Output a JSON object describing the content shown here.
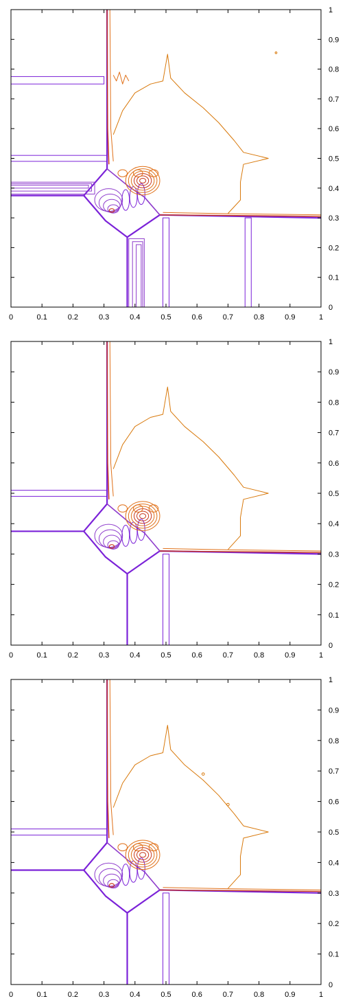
{
  "colors": {
    "contour_a": "#7b22d8",
    "contour_b": "#8e3ccc",
    "contour_c": "#c8381c",
    "contour_d": "#e07018",
    "contour_e": "#d8780a",
    "axis": "#000000"
  },
  "chart_data": [
    {
      "type": "contour",
      "panel": "top",
      "title": "",
      "xlabel": "",
      "ylabel": "",
      "xlim": [
        0,
        1
      ],
      "ylim": [
        0,
        1
      ],
      "xticks": [
        "0",
        "0.1",
        "0.2",
        "0.3",
        "0.4",
        "0.5",
        "0.6",
        "0.7",
        "0.8",
        "0.9",
        "1"
      ],
      "yticks": [
        "0",
        "0.1",
        "0.2",
        "0.3",
        "0.4",
        "0.5",
        "0.6",
        "0.7",
        "0.8",
        "0.9",
        "1"
      ],
      "yaxis_side": "right",
      "grid": false,
      "legend": "none",
      "notes": "multiple spurious straight contour lines along x and y directions"
    },
    {
      "type": "contour",
      "panel": "middle",
      "title": "",
      "xlabel": "",
      "ylabel": "",
      "xlim": [
        0,
        1
      ],
      "ylim": [
        0,
        1
      ],
      "xticks": [
        "0",
        "0.1",
        "0.2",
        "0.3",
        "0.4",
        "0.5",
        "0.6",
        "0.7",
        "0.8",
        "0.9",
        "1"
      ],
      "yticks": [
        "0",
        "0.1",
        "0.2",
        "0.3",
        "0.4",
        "0.5",
        "0.6",
        "0.7",
        "0.8",
        "0.9",
        "1"
      ],
      "yaxis_side": "right",
      "grid": false,
      "legend": "none"
    },
    {
      "type": "contour",
      "panel": "bottom",
      "title": "",
      "xlabel": "",
      "ylabel": "",
      "xlim": [
        0,
        1
      ],
      "ylim": [
        0,
        1
      ],
      "xticks": [
        "0",
        "0.1",
        "0.2",
        "0.3",
        "0.4",
        "0.5",
        "0.6",
        "0.7",
        "0.8",
        "0.9",
        "1"
      ],
      "yticks": [
        "0",
        "0.1",
        "0.2",
        "0.3",
        "0.4",
        "0.5",
        "0.6",
        "0.7",
        "0.8",
        "0.9",
        "1"
      ],
      "yaxis_side": "right",
      "grid": false,
      "legend": "none"
    }
  ]
}
